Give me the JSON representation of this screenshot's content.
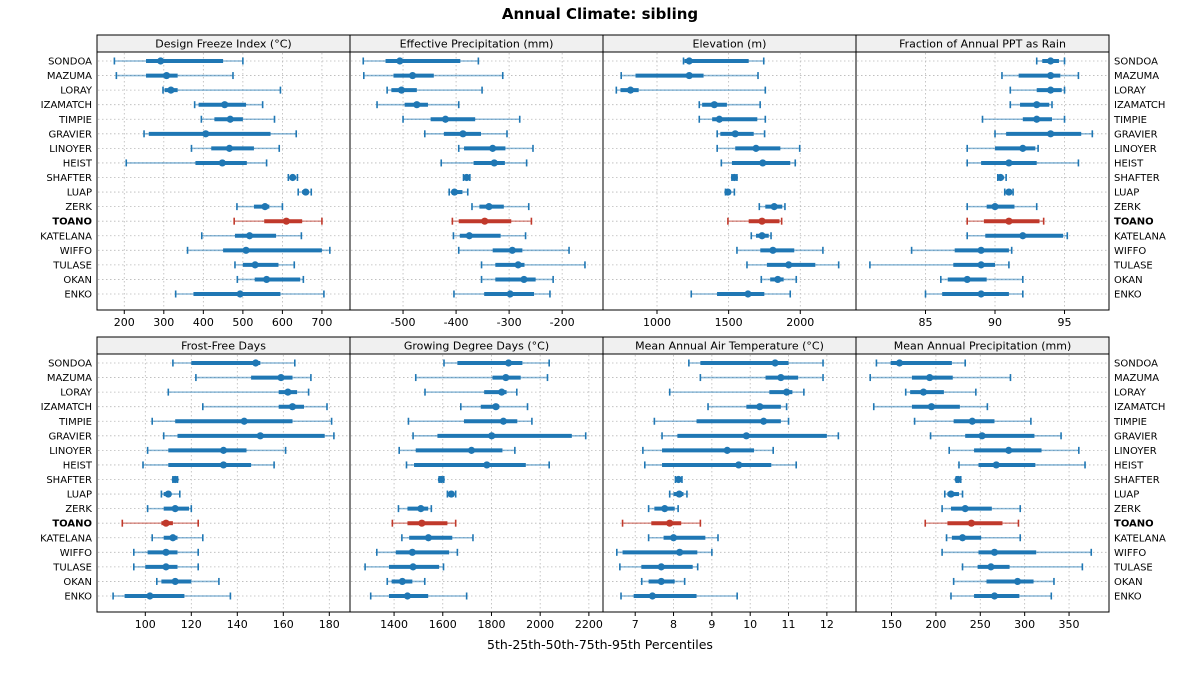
{
  "title": "Annual Climate: sibling",
  "footer": "5th-25th-50th-75th-95th Percentiles",
  "colors": {
    "series": "#1f77b4",
    "highlight": "#c0392b",
    "strip_bg": "#f0f0f0",
    "panel_border": "#000000",
    "grid": "#b8b8b8",
    "text": "#000000"
  },
  "chart_data": {
    "type": "percentile-dotplot",
    "layout": "2x4 trellis, shared site axis, TOANO highlighted in red",
    "percentile_labels": [
      5,
      25,
      50,
      75,
      95
    ],
    "highlight_site": "TOANO",
    "sites": [
      "SONDOA",
      "MAZUMA",
      "LORAY",
      "IZAMATCH",
      "TIMPIE",
      "GRAVIER",
      "LINOYER",
      "HEIST",
      "SHAFTER",
      "LUAP",
      "ZERK",
      "TOANO",
      "KATELANA",
      "WIFFO",
      "TULASE",
      "OKAN",
      "ENKO"
    ],
    "panels": [
      {
        "title": "Design Freeze Index (°C)",
        "xlim": [
          131,
          771
        ],
        "xticks": [
          200,
          300,
          400,
          500,
          600,
          700
        ],
        "data": [
          [
            175,
            255,
            292,
            450,
            500
          ],
          [
            180,
            255,
            307,
            335,
            475
          ],
          [
            298,
            302,
            318,
            335,
            595
          ],
          [
            378,
            388,
            454,
            508,
            550
          ],
          [
            395,
            428,
            468,
            500,
            580
          ],
          [
            250,
            262,
            406,
            570,
            635
          ],
          [
            370,
            420,
            466,
            528,
            592
          ],
          [
            205,
            380,
            448,
            510,
            560
          ],
          [
            615,
            620,
            626,
            631,
            638
          ],
          [
            640,
            650,
            659,
            666,
            673
          ],
          [
            485,
            528,
            556,
            567,
            600
          ],
          [
            478,
            554,
            610,
            650,
            700
          ],
          [
            396,
            480,
            517,
            584,
            648
          ],
          [
            360,
            450,
            508,
            700,
            720
          ],
          [
            480,
            500,
            531,
            590,
            630
          ],
          [
            486,
            530,
            560,
            645,
            653
          ],
          [
            330,
            375,
            493,
            595,
            705
          ]
        ]
      },
      {
        "title": "Effective Precipitation (mm)",
        "xlim": [
          -600,
          -123
        ],
        "xticks": [
          -500,
          -400,
          -300,
          -200
        ],
        "data": [
          [
            -575,
            -533,
            -506,
            -392,
            -358
          ],
          [
            -574,
            -518,
            -482,
            -442,
            -312
          ],
          [
            -530,
            -522,
            -503,
            -474,
            -351
          ],
          [
            -549,
            -497,
            -474,
            -453,
            -395
          ],
          [
            -500,
            -448,
            -420,
            -364,
            -280
          ],
          [
            -459,
            -423,
            -387,
            -353,
            -304
          ],
          [
            -395,
            -385,
            -331,
            -307,
            -255
          ],
          [
            -428,
            -367,
            -328,
            -308,
            -267
          ],
          [
            -386,
            -383,
            -380,
            -377,
            -374
          ],
          [
            -413,
            -407,
            -403,
            -388,
            -378
          ],
          [
            -370,
            -356,
            -338,
            -310,
            -263
          ],
          [
            -407,
            -395,
            -346,
            -296,
            -258
          ],
          [
            -405,
            -393,
            -375,
            -316,
            -269
          ],
          [
            -395,
            -331,
            -294,
            -275,
            -187
          ],
          [
            -352,
            -326,
            -283,
            -271,
            -157
          ],
          [
            -352,
            -326,
            -272,
            -250,
            -217
          ],
          [
            -404,
            -347,
            -298,
            -253,
            -223
          ]
        ]
      },
      {
        "title": "Elevation (m)",
        "xlim": [
          623,
          2389
        ],
        "xticks": [
          1000,
          1500,
          2000
        ],
        "data": [
          [
            1185,
            1192,
            1225,
            1640,
            1745
          ],
          [
            750,
            850,
            1225,
            1325,
            1705
          ],
          [
            716,
            745,
            815,
            872,
            1756
          ],
          [
            1295,
            1315,
            1400,
            1488,
            1720
          ],
          [
            1295,
            1385,
            1435,
            1700,
            1756
          ],
          [
            1420,
            1442,
            1546,
            1675,
            1751
          ],
          [
            1420,
            1546,
            1691,
            1861,
            1996
          ],
          [
            1449,
            1523,
            1738,
            1930,
            1965
          ],
          [
            1523,
            1532,
            1540,
            1549,
            1558
          ],
          [
            1478,
            1487,
            1495,
            1512,
            1540
          ],
          [
            1714,
            1756,
            1818,
            1874,
            1893
          ],
          [
            1495,
            1640,
            1733,
            1855,
            1870
          ],
          [
            1658,
            1691,
            1733,
            1780,
            1796
          ],
          [
            1558,
            1721,
            1809,
            1958,
            2158
          ],
          [
            1628,
            1767,
            1919,
            2105,
            2268
          ],
          [
            1728,
            1790,
            1843,
            1884,
            1972
          ],
          [
            1239,
            1419,
            1635,
            1749,
            1930
          ]
        ]
      },
      {
        "title": "Fraction of Annual PPT as Rain",
        "xlim": [
          80,
          98.2
        ],
        "xticks": [
          85,
          90,
          95
        ],
        "data": [
          [
            93.0,
            93.4,
            94.0,
            94.6,
            95.0
          ],
          [
            90.5,
            91.7,
            94.0,
            94.7,
            96.0
          ],
          [
            91.1,
            93.0,
            94.0,
            94.8,
            95.0
          ],
          [
            91.1,
            91.8,
            93.0,
            93.9,
            94.1
          ],
          [
            89.1,
            92.0,
            93.0,
            94.1,
            95.0
          ],
          [
            90.0,
            90.8,
            94.0,
            96.2,
            97.0
          ],
          [
            88.0,
            90.0,
            92.0,
            92.9,
            93.1
          ],
          [
            88.0,
            89.0,
            91.0,
            93.0,
            96.0
          ],
          [
            90.2,
            90.3,
            90.4,
            90.6,
            90.8
          ],
          [
            90.7,
            90.9,
            91.0,
            91.1,
            91.3
          ],
          [
            88.0,
            89.4,
            90.0,
            91.4,
            93.0
          ],
          [
            88.0,
            89.2,
            91.0,
            93.2,
            93.5
          ],
          [
            88.0,
            89.3,
            92.0,
            94.9,
            95.2
          ],
          [
            84.0,
            87.1,
            89.0,
            91.0,
            91.2
          ],
          [
            81.0,
            87.0,
            89.0,
            90.0,
            91.0
          ],
          [
            86.1,
            86.6,
            88.0,
            89.4,
            92.0
          ],
          [
            85.0,
            86.2,
            89.0,
            91.0,
            92.0
          ]
        ]
      },
      {
        "title": "Frost-Free Days",
        "xlim": [
          79,
          189
        ],
        "xticks": [
          100,
          120,
          140,
          160,
          180
        ],
        "data": [
          [
            112,
            120,
            148,
            150,
            165
          ],
          [
            122,
            146,
            159,
            164,
            172
          ],
          [
            110,
            158,
            162,
            166,
            171
          ],
          [
            125,
            158,
            164,
            169,
            179
          ],
          [
            103,
            113,
            143,
            164,
            181
          ],
          [
            108,
            114,
            150,
            178,
            182
          ],
          [
            101,
            110,
            134,
            144,
            161
          ],
          [
            99,
            110,
            134,
            146,
            156
          ],
          [
            112,
            112.5,
            113,
            113.5,
            114
          ],
          [
            107,
            108,
            110,
            111,
            115
          ],
          [
            101,
            108,
            113,
            119,
            120
          ],
          [
            90,
            107,
            109,
            112,
            123
          ],
          [
            103,
            108,
            112,
            114,
            125
          ],
          [
            95,
            101,
            109,
            114,
            123
          ],
          [
            95,
            100,
            109,
            114,
            123
          ],
          [
            105,
            107,
            113,
            120,
            132
          ],
          [
            86,
            91,
            102,
            117,
            137
          ]
        ]
      },
      {
        "title": "Growing Degree Days (°C)",
        "xlim": [
          1219,
          2258
        ],
        "xticks": [
          1400,
          1600,
          1800,
          2000,
          2200
        ],
        "data": [
          [
            1605,
            1660,
            1870,
            1927,
            2037
          ],
          [
            1489,
            1804,
            1859,
            1920,
            2030
          ],
          [
            1527,
            1770,
            1842,
            1862,
            1904
          ],
          [
            1674,
            1756,
            1818,
            1832,
            1948
          ],
          [
            1459,
            1687,
            1849,
            1906,
            1966
          ],
          [
            1478,
            1578,
            1801,
            2130,
            2187
          ],
          [
            1421,
            1489,
            1718,
            1845,
            1896
          ],
          [
            1451,
            1482,
            1781,
            1941,
            2037
          ],
          [
            1585,
            1590,
            1594,
            1599,
            1604
          ],
          [
            1619,
            1627,
            1635,
            1645,
            1653
          ],
          [
            1418,
            1455,
            1510,
            1540,
            1553
          ],
          [
            1393,
            1455,
            1514,
            1619,
            1653
          ],
          [
            1432,
            1462,
            1541,
            1639,
            1724
          ],
          [
            1329,
            1407,
            1475,
            1626,
            1660
          ],
          [
            1281,
            1379,
            1478,
            1585,
            1603
          ],
          [
            1372,
            1390,
            1434,
            1475,
            1526
          ],
          [
            1304,
            1379,
            1455,
            1540,
            1698
          ]
        ]
      },
      {
        "title": "Mean Annual Air Temperature (°C)",
        "xlim": [
          6.16,
          12.76
        ],
        "xticks": [
          7,
          8,
          9,
          10,
          11,
          12
        ],
        "data": [
          [
            8.4,
            8.7,
            10.65,
            11.0,
            11.9
          ],
          [
            8.7,
            10.4,
            10.8,
            11.25,
            11.9
          ],
          [
            7.9,
            10.5,
            10.95,
            11.1,
            11.4
          ],
          [
            8.9,
            9.9,
            10.25,
            10.8,
            10.95
          ],
          [
            7.5,
            8.6,
            10.35,
            10.8,
            11.0
          ],
          [
            7.7,
            8.1,
            9.9,
            12.0,
            12.3
          ],
          [
            7.2,
            7.7,
            9.4,
            10.1,
            10.6
          ],
          [
            7.25,
            7.7,
            9.7,
            10.55,
            11.2
          ],
          [
            8.05,
            8.1,
            8.13,
            8.17,
            8.22
          ],
          [
            7.9,
            8.0,
            8.15,
            8.26,
            8.35
          ],
          [
            7.35,
            7.5,
            7.77,
            8.03,
            8.12
          ],
          [
            6.67,
            7.42,
            7.9,
            8.2,
            8.7
          ],
          [
            7.35,
            7.74,
            8.0,
            8.83,
            9.16
          ],
          [
            6.52,
            6.67,
            8.16,
            8.62,
            9.0
          ],
          [
            6.6,
            7.16,
            7.68,
            8.5,
            8.63
          ],
          [
            7.17,
            7.35,
            7.68,
            8.03,
            8.29
          ],
          [
            6.63,
            6.96,
            7.45,
            8.6,
            9.66
          ]
        ]
      },
      {
        "title": "Mean Annual Precipitation (mm)",
        "xlim": [
          110,
          395
        ],
        "xticks": [
          150,
          200,
          250,
          300,
          350
        ],
        "data": [
          [
            133,
            149,
            159,
            218,
            233
          ],
          [
            126,
            173,
            193,
            219,
            284
          ],
          [
            166,
            171,
            186,
            209,
            245
          ],
          [
            130,
            173,
            195,
            227,
            258
          ],
          [
            176,
            220,
            241,
            266,
            307
          ],
          [
            194,
            233,
            252,
            311,
            341
          ],
          [
            215,
            243,
            282,
            319,
            361
          ],
          [
            226,
            248,
            268,
            312,
            368
          ],
          [
            223,
            224,
            225,
            226,
            228
          ],
          [
            210,
            213,
            217,
            226,
            230
          ],
          [
            207,
            217,
            233,
            263,
            295
          ],
          [
            188,
            213,
            240,
            275,
            293
          ],
          [
            212,
            218,
            230,
            251,
            295
          ],
          [
            207,
            248,
            266,
            313,
            375
          ],
          [
            230,
            247,
            262,
            283,
            365
          ],
          [
            220,
            257,
            292,
            310,
            333
          ],
          [
            217,
            243,
            266,
            294,
            330
          ]
        ]
      }
    ]
  }
}
